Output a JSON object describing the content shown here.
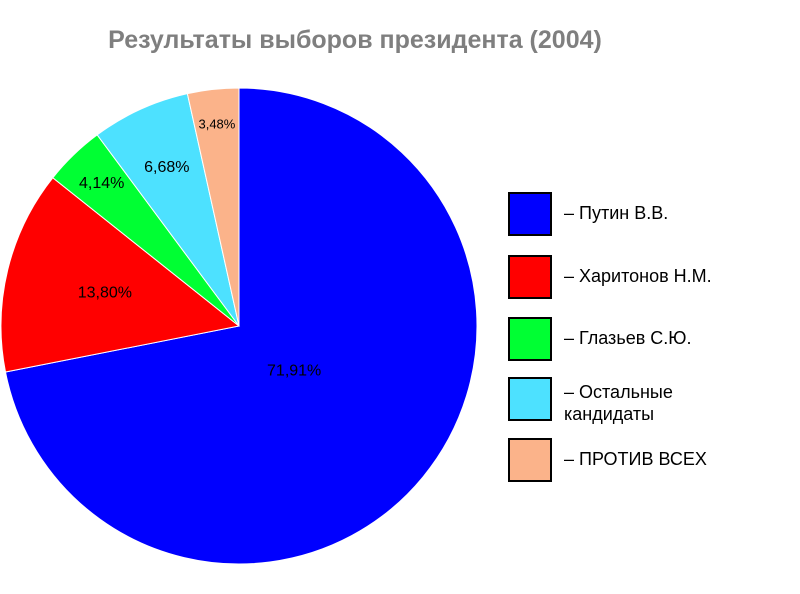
{
  "chart_data": {
    "type": "pie",
    "title": "Результаты выборов президента (2004)",
    "slices": [
      {
        "name": "– Путин В.В.",
        "value": 71.91,
        "label": "71,91%",
        "color": "#0000ff"
      },
      {
        "name": "– Харитонов Н.М.",
        "value": 13.8,
        "label": "13,80%",
        "color": "#ff0000"
      },
      {
        "name": "– Глазьев С.Ю.",
        "value": 4.14,
        "label": "4,14%",
        "color": "#00ff33"
      },
      {
        "name": "– Остальные кандидаты",
        "value": 6.68,
        "label": "6,68%",
        "color": "#4de1ff"
      },
      {
        "name": "– ПРОТИВ ВСЕХ",
        "value": 3.48,
        "label": "3,48%",
        "color": "#fbb38a"
      }
    ],
    "legend_position": "right"
  }
}
